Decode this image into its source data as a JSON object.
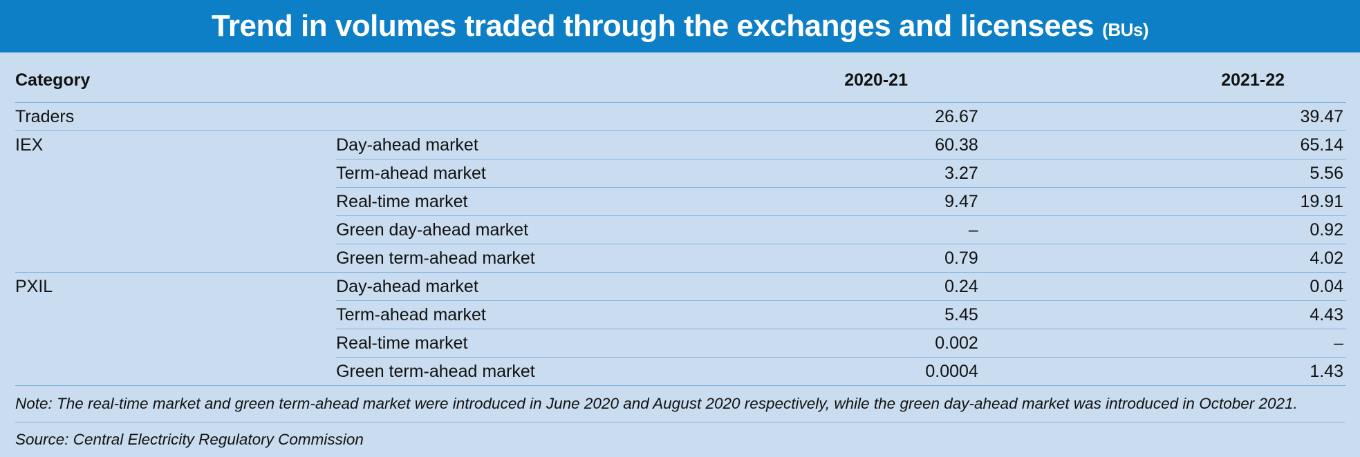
{
  "title": "Trend in volumes traded through the exchanges and licensees",
  "title_unit": "(BUs)",
  "table": {
    "headers": {
      "category": "Category",
      "year1": "2020-21",
      "year2": "2021-22"
    },
    "rows": [
      {
        "category": "Traders",
        "subcategory": "",
        "y1": "26.67",
        "y2": "39.47"
      },
      {
        "category": "IEX",
        "subcategory": "Day-ahead market",
        "y1": "60.38",
        "y2": "65.14"
      },
      {
        "category": "",
        "subcategory": "Term-ahead market",
        "y1": "3.27",
        "y2": "5.56"
      },
      {
        "category": "",
        "subcategory": "Real-time market",
        "y1": "9.47",
        "y2": "19.91"
      },
      {
        "category": "",
        "subcategory": "Green day-ahead market",
        "y1": "–",
        "y2": "0.92"
      },
      {
        "category": "",
        "subcategory": "Green term-ahead market",
        "y1": "0.79",
        "y2": "4.02"
      },
      {
        "category": "PXIL",
        "subcategory": "Day-ahead market",
        "y1": "0.24",
        "y2": "0.04"
      },
      {
        "category": "",
        "subcategory": "Term-ahead market",
        "y1": "5.45",
        "y2": "4.43"
      },
      {
        "category": "",
        "subcategory": "Real-time market",
        "y1": "0.002",
        "y2": "–"
      },
      {
        "category": "",
        "subcategory": "Green term-ahead market",
        "y1": "0.0004",
        "y2": "1.43"
      }
    ]
  },
  "note": "Note: The real-time market and green term-ahead market were introduced in June 2020 and August 2020 respectively, while the green day-ahead market was introduced in October 2021.",
  "source": "Source: Central Electricity Regulatory Commission",
  "colors": {
    "banner": "#0c7fc6",
    "background": "#c9dcf0",
    "rule": "#7fb3dd"
  }
}
